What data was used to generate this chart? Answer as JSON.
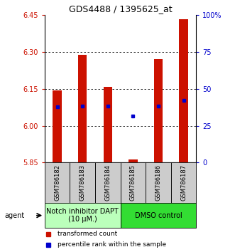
{
  "title": "GDS4488 / 1395625_at",
  "samples": [
    "GSM786182",
    "GSM786183",
    "GSM786184",
    "GSM786185",
    "GSM786186",
    "GSM786187"
  ],
  "bar_bottom": 5.85,
  "bar_tops": [
    6.143,
    6.287,
    6.158,
    5.862,
    6.272,
    6.432
  ],
  "blue_dots": [
    6.078,
    6.079,
    6.079,
    6.038,
    6.079,
    6.103
  ],
  "ylim_left": [
    5.85,
    6.45
  ],
  "ylim_right": [
    0,
    100
  ],
  "yticks_left": [
    5.85,
    6.0,
    6.15,
    6.3,
    6.45
  ],
  "yticks_right": [
    0,
    25,
    50,
    75,
    100
  ],
  "ytick_labels_right": [
    "0",
    "25",
    "50",
    "75",
    "100%"
  ],
  "bar_color": "#cc1100",
  "blue_color": "#0000cc",
  "group1_label": "Notch inhibitor DAPT\n(10 μM.)",
  "group2_label": "DMSO control",
  "group1_color": "#bbffbb",
  "group2_color": "#33dd33",
  "group1_samples": [
    0,
    1,
    2
  ],
  "group2_samples": [
    3,
    4,
    5
  ],
  "agent_label": "agent",
  "legend_red": "transformed count",
  "legend_blue": "percentile rank within the sample",
  "bar_width": 0.35,
  "grid_yticks": [
    6.0,
    6.15,
    6.3
  ],
  "sample_box_color": "#cccccc",
  "title_fontsize": 9,
  "tick_fontsize": 7,
  "label_fontsize": 6,
  "group_fontsize": 7,
  "legend_fontsize": 6.5
}
